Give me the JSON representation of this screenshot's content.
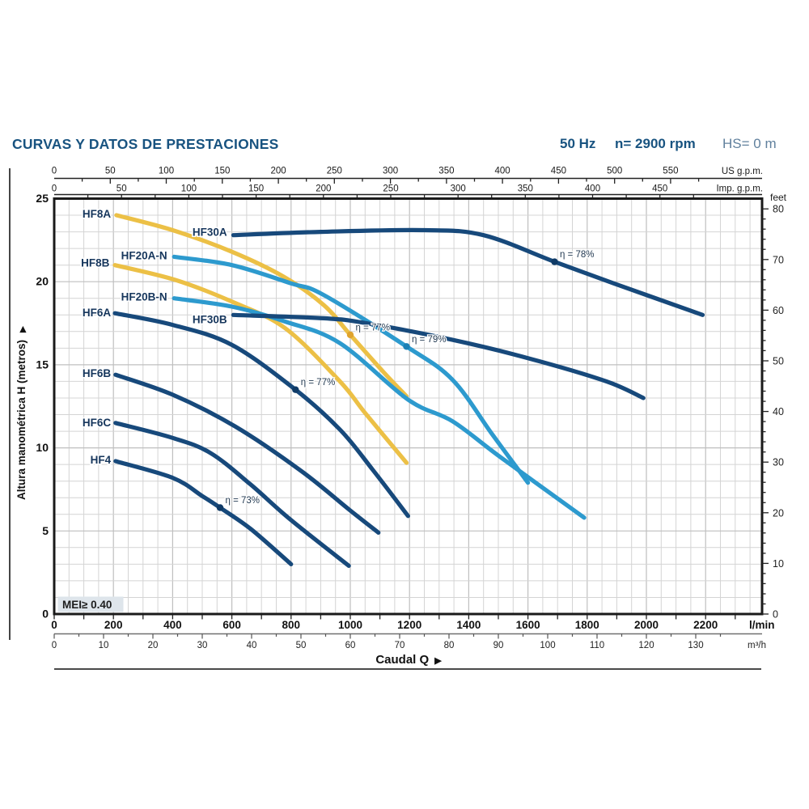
{
  "header": {
    "title": "CURVAS Y DATOS DE PRESTACIONES",
    "frequency": "50 Hz",
    "speed": "n= 2900 rpm",
    "suction": "HS= 0 m"
  },
  "chart_data": {
    "type": "line",
    "xlabel": "Caudal Q",
    "x_arrow": "▶",
    "ylabel": "Altura manométrica H (metros)",
    "y_arrow": "▶",
    "mei_label": "MEI≥ 0.40",
    "ylim": [
      0,
      25
    ],
    "xlim_lmin": [
      0,
      2390
    ],
    "grid": "on",
    "axes": {
      "us_gpm": {
        "unit": "US g.p.m.",
        "tick_step": 50,
        "minor_step": 25,
        "max": 550,
        "lmin_per_unit": 3.785
      },
      "imp_gpm": {
        "unit": "Imp. g.p.m.",
        "tick_step": 50,
        "minor_step": 25,
        "max": 450,
        "lmin_per_unit": 4.546
      },
      "lmin": {
        "unit": "l/min",
        "tick_step": 200,
        "minor_step": 100,
        "max": 2200
      },
      "m3h": {
        "unit": "m³/h",
        "tick_step": 10,
        "minor_step": 5,
        "max": 130,
        "lmin_per_unit": 16.667
      },
      "metros": {
        "tick_step": 5,
        "max": 25
      },
      "feet": {
        "unit": "feet",
        "tick_step": 10,
        "minor_step": 2,
        "max": 80,
        "m_per_unit": 0.3048
      }
    },
    "series": [
      {
        "name": "HF8A",
        "color": "#ecc046",
        "label_q": 200,
        "label_h": 24.1,
        "points": [
          [
            210,
            24.0
          ],
          [
            400,
            23.1
          ],
          [
            600,
            21.8
          ],
          [
            775,
            20.3
          ],
          [
            910,
            18.6
          ],
          [
            1000,
            16.8
          ],
          [
            1110,
            14.6
          ],
          [
            1190,
            13.1
          ]
        ]
      },
      {
        "name": "HF8B",
        "color": "#ecc046",
        "label_q": 195,
        "label_h": 21.15,
        "points": [
          [
            205,
            21.0
          ],
          [
            410,
            20.1
          ],
          [
            600,
            18.8
          ],
          [
            780,
            17.2
          ],
          [
            965,
            14.0
          ],
          [
            1050,
            12.1
          ],
          [
            1190,
            9.1
          ]
        ]
      },
      {
        "name": "HF20A-N",
        "color": "#2d9ace",
        "label_q": 390,
        "label_h": 21.6,
        "points": [
          [
            405,
            21.5
          ],
          [
            600,
            21.0
          ],
          [
            800,
            19.9
          ],
          [
            910,
            19.2
          ],
          [
            1190,
            16.1
          ],
          [
            1345,
            14.1
          ],
          [
            1480,
            10.8
          ],
          [
            1600,
            7.9
          ]
        ]
      },
      {
        "name": "HF20B-N",
        "color": "#2d9ace",
        "label_q": 390,
        "label_h": 19.1,
        "points": [
          [
            405,
            19.0
          ],
          [
            600,
            18.5
          ],
          [
            780,
            17.6
          ],
          [
            965,
            16.3
          ],
          [
            1195,
            12.9
          ],
          [
            1345,
            11.6
          ],
          [
            1510,
            9.4
          ],
          [
            1790,
            5.8
          ]
        ]
      },
      {
        "name": "HF30A",
        "color": "#17497b",
        "label_q": 592,
        "label_h": 23.0,
        "points": [
          [
            605,
            22.8
          ],
          [
            900,
            23.0
          ],
          [
            1250,
            23.1
          ],
          [
            1450,
            22.8
          ],
          [
            1690,
            21.2
          ],
          [
            1890,
            19.9
          ],
          [
            2190,
            18.0
          ]
        ]
      },
      {
        "name": "HF30B",
        "color": "#17497b",
        "label_q": 592,
        "label_h": 17.75,
        "points": [
          [
            605,
            18.0
          ],
          [
            910,
            17.8
          ],
          [
            1055,
            17.5
          ],
          [
            1345,
            16.5
          ],
          [
            1600,
            15.4
          ],
          [
            1865,
            14.0
          ],
          [
            1990,
            13.0
          ]
        ]
      },
      {
        "name": "HF6A",
        "color": "#17497b",
        "label_q": 200,
        "label_h": 18.15,
        "points": [
          [
            205,
            18.1
          ],
          [
            400,
            17.4
          ],
          [
            600,
            16.2
          ],
          [
            815,
            13.5
          ],
          [
            965,
            11.1
          ],
          [
            1075,
            8.7
          ],
          [
            1195,
            5.9
          ]
        ]
      },
      {
        "name": "HF6B",
        "color": "#17497b",
        "label_q": 200,
        "label_h": 14.5,
        "points": [
          [
            207,
            14.4
          ],
          [
            400,
            13.2
          ],
          [
            610,
            11.3
          ],
          [
            835,
            8.6
          ],
          [
            995,
            6.3
          ],
          [
            1095,
            4.9
          ]
        ]
      },
      {
        "name": "HF6C",
        "color": "#17497b",
        "label_q": 200,
        "label_h": 11.55,
        "points": [
          [
            207,
            11.5
          ],
          [
            400,
            10.6
          ],
          [
            527,
            9.7
          ],
          [
            663,
            7.8
          ],
          [
            800,
            5.65
          ],
          [
            995,
            2.9
          ]
        ]
      },
      {
        "name": "HF4",
        "color": "#17497b",
        "label_q": 200,
        "label_h": 9.3,
        "points": [
          [
            207,
            9.2
          ],
          [
            400,
            8.2
          ],
          [
            500,
            7.1
          ],
          [
            560,
            6.4
          ],
          [
            665,
            5.1
          ],
          [
            800,
            3.0
          ]
        ]
      }
    ],
    "efficiency_markers": [
      {
        "text": "η = 78%",
        "series": "HF30A",
        "q": 1690,
        "h": 21.2
      },
      {
        "text": "η = 77%",
        "series": "HF8A",
        "q": 1000,
        "h": 16.8
      },
      {
        "text": "η = 79%",
        "series": "HF20A-N",
        "q": 1190,
        "h": 16.1
      },
      {
        "text": "η = 77%",
        "series": "HF6A",
        "q": 815,
        "h": 13.5
      },
      {
        "text": "η = 73%",
        "series": "HF4",
        "q": 560,
        "h": 6.4
      }
    ]
  }
}
